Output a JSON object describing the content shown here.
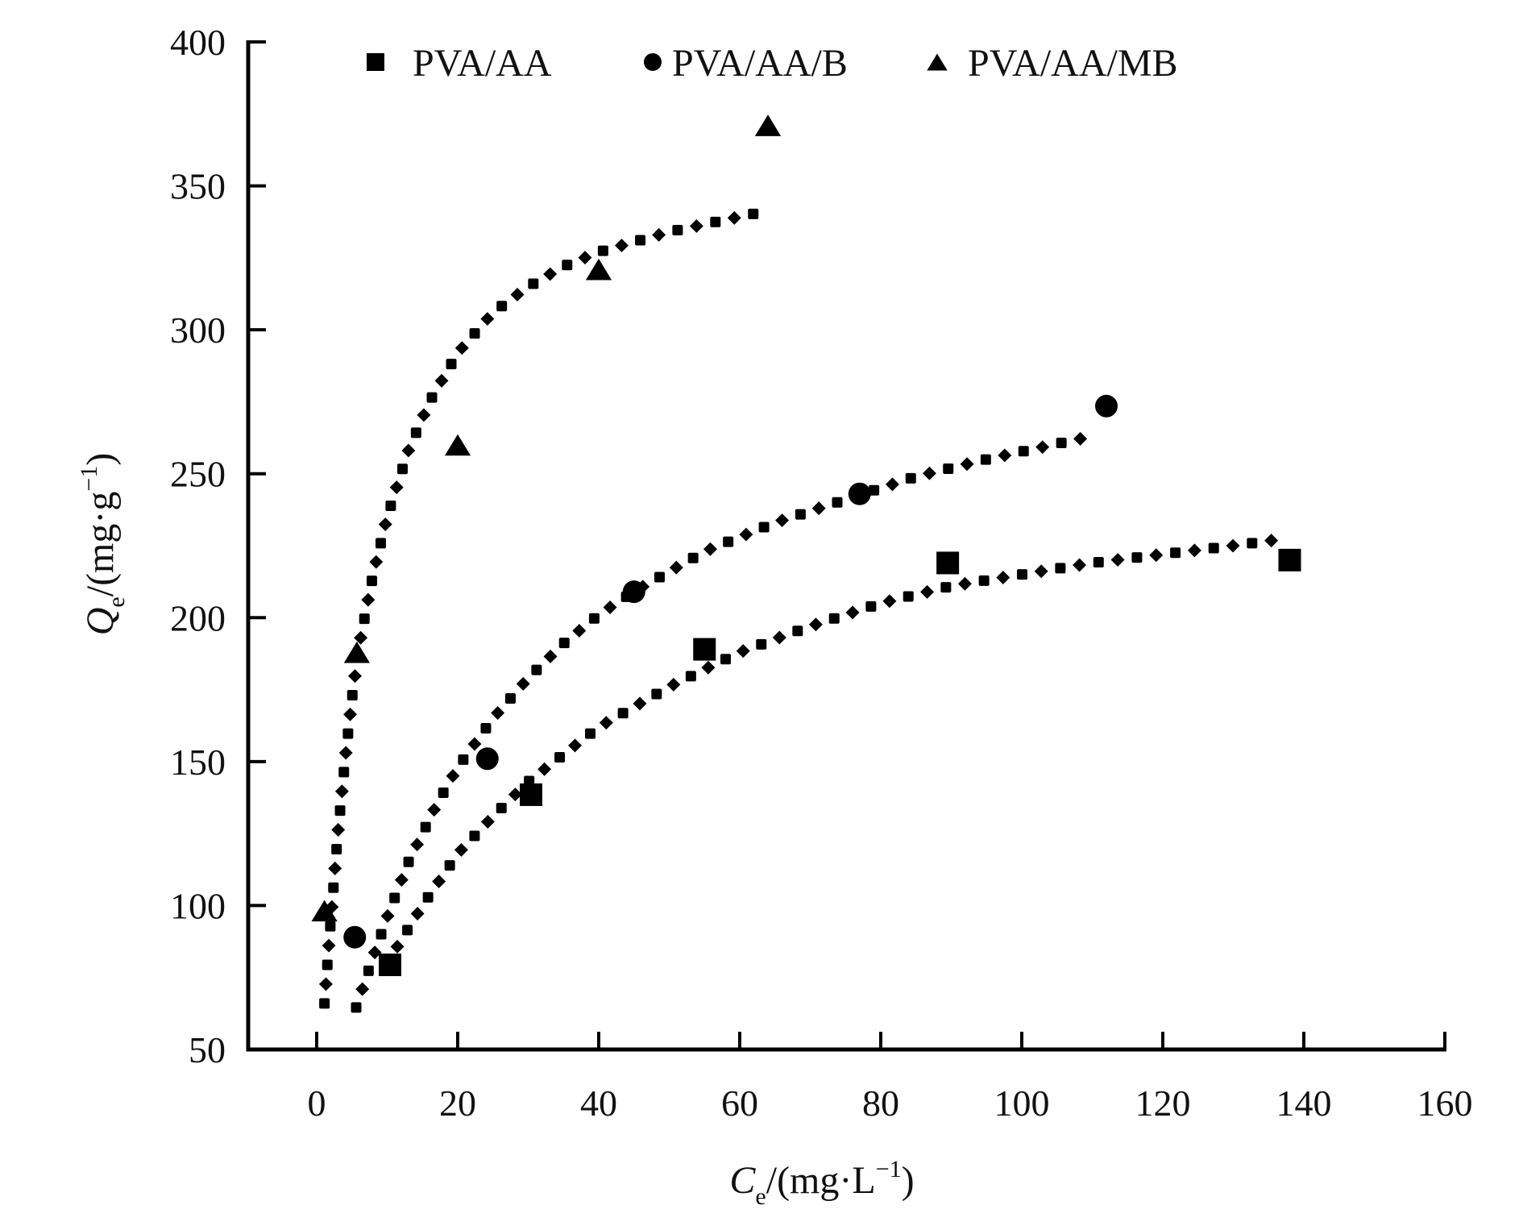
{
  "chart_data": {
    "type": "scatter",
    "title": "",
    "xlabel": {
      "main": "C",
      "sub": "e",
      "unit": "/(mg·L",
      "sup": "−1",
      "close": ")"
    },
    "ylabel": {
      "main": "Q",
      "sub": "e",
      "unit": "/(mg·g",
      "sup": "−1",
      "close": ")"
    },
    "xlim": [
      -10,
      160
    ],
    "ylim": [
      50,
      400
    ],
    "xticks": [
      0,
      20,
      40,
      60,
      80,
      100,
      120,
      140,
      160
    ],
    "yticks": [
      50,
      100,
      150,
      200,
      250,
      300,
      350,
      400
    ],
    "grid": false,
    "legend_position": "top",
    "series": [
      {
        "name": "PVA/AA",
        "marker": "square",
        "points": [
          [
            10.4,
            79.4
          ],
          [
            30.4,
            138.5
          ],
          [
            55.0,
            189.0
          ],
          [
            89.5,
            219.0
          ],
          [
            138.0,
            220.0
          ]
        ],
        "fit": [
          [
            10,
            80
          ],
          [
            15,
            100
          ],
          [
            20,
            118
          ],
          [
            25,
            131
          ],
          [
            30,
            143
          ],
          [
            40,
            162
          ],
          [
            50,
            176
          ],
          [
            60,
            188
          ],
          [
            70,
            197
          ],
          [
            80,
            205
          ],
          [
            90,
            211
          ],
          [
            100,
            215
          ],
          [
            110,
            219
          ],
          [
            120,
            222
          ],
          [
            130,
            225
          ],
          [
            136,
            227
          ]
        ]
      },
      {
        "name": "PVA/AA/B",
        "marker": "circle",
        "points": [
          [
            5.4,
            89.0
          ],
          [
            24.2,
            151.0
          ],
          [
            45.0,
            209.0
          ],
          [
            77.0,
            243.0
          ],
          [
            112.0,
            273.5
          ]
        ],
        "fit": [
          [
            5.6,
            64.6
          ],
          [
            8,
            82
          ],
          [
            10,
            96
          ],
          [
            13,
            115
          ],
          [
            17,
            135
          ],
          [
            20,
            148
          ],
          [
            25,
            165
          ],
          [
            30,
            179
          ],
          [
            35,
            191
          ],
          [
            40,
            201
          ],
          [
            45,
            209
          ],
          [
            55,
            223
          ],
          [
            65,
            233
          ],
          [
            75,
            241
          ],
          [
            85,
            249
          ],
          [
            95,
            255
          ],
          [
            109,
            262.5
          ]
        ]
      },
      {
        "name": "PVA/AA/MB",
        "marker": "triangle",
        "points": [
          [
            1.1,
            98.2
          ],
          [
            5.7,
            188.0
          ],
          [
            20.0,
            260.0
          ],
          [
            40.0,
            321.0
          ],
          [
            64.0,
            371.0
          ]
        ],
        "fit": [
          [
            1.1,
            66
          ],
          [
            2,
            95
          ],
          [
            3,
            125
          ],
          [
            4,
            150
          ],
          [
            5,
            172
          ],
          [
            6,
            190
          ],
          [
            8,
            215
          ],
          [
            10,
            235
          ],
          [
            13,
            258
          ],
          [
            16,
            275
          ],
          [
            20,
            292
          ],
          [
            25,
            306
          ],
          [
            30,
            315
          ],
          [
            35,
            322
          ],
          [
            40,
            327
          ],
          [
            50,
            334
          ],
          [
            63.3,
            341
          ]
        ]
      }
    ]
  }
}
